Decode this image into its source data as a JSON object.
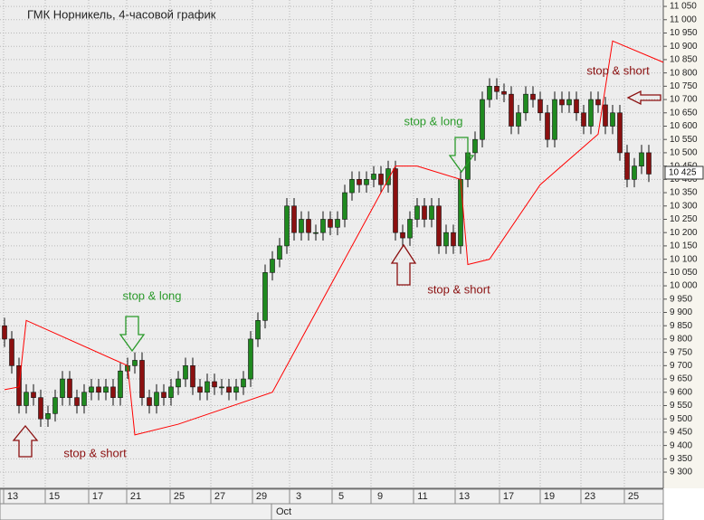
{
  "chart_data": {
    "type": "candlestick",
    "title": "ГМК Норникель, 4-часовой график",
    "open": [
      9850,
      9800,
      9700,
      9550,
      9600,
      9580,
      9500,
      9520,
      9580,
      9650,
      9580,
      9550,
      9600,
      9620,
      9600,
      9620,
      9580,
      9680,
      9700,
      9720,
      9580,
      9550,
      9600,
      9580,
      9620,
      9650,
      9700,
      9620,
      9600,
      9640,
      9620,
      9620,
      9600,
      9620,
      9650,
      9800,
      9870,
      10050,
      10100,
      10150,
      10300,
      10200,
      10250,
      10200,
      10200,
      10250,
      10220,
      10250,
      10350,
      10400,
      10380,
      10400,
      10420,
      10380,
      10440,
      10200,
      10180,
      10250,
      10300,
      10250,
      10300,
      10150,
      10200,
      10150,
      10400,
      10500,
      10550,
      10700,
      10750,
      10730,
      10720,
      10600,
      10650,
      10720,
      10700,
      10650,
      10550,
      10700,
      10680,
      10700,
      10650,
      10600,
      10700,
      10680,
      10600,
      10650,
      10500,
      10400,
      10450,
      10500
    ],
    "high": [
      9880,
      9830,
      9730,
      9630,
      9630,
      9610,
      9550,
      9610,
      9680,
      9680,
      9610,
      9630,
      9650,
      9650,
      9650,
      9650,
      9710,
      9730,
      9750,
      9750,
      9610,
      9630,
      9630,
      9650,
      9680,
      9730,
      9730,
      9650,
      9670,
      9670,
      9650,
      9650,
      9650,
      9680,
      9830,
      9900,
      10080,
      10130,
      10180,
      10330,
      10330,
      10280,
      10280,
      10230,
      10280,
      10280,
      10280,
      10380,
      10430,
      10430,
      10430,
      10450,
      10450,
      10470,
      10470,
      10230,
      10280,
      10330,
      10330,
      10330,
      10330,
      10230,
      10230,
      10430,
      10530,
      10580,
      10730,
      10780,
      10780,
      10760,
      10750,
      10680,
      10750,
      10750,
      10730,
      10680,
      10730,
      10730,
      10730,
      10730,
      10680,
      10730,
      10730,
      10710,
      10680,
      10680,
      10530,
      10480,
      10530,
      10530
    ],
    "low": [
      9770,
      9670,
      9520,
      9520,
      9550,
      9470,
      9470,
      9490,
      9550,
      9550,
      9520,
      9520,
      9570,
      9570,
      9570,
      9550,
      9550,
      9650,
      9670,
      9550,
      9520,
      9520,
      9550,
      9550,
      9590,
      9620,
      9590,
      9570,
      9570,
      9590,
      9590,
      9570,
      9570,
      9590,
      9620,
      9770,
      9840,
      10020,
      10070,
      10120,
      10170,
      10170,
      10170,
      10170,
      10170,
      10190,
      10190,
      10220,
      10320,
      10350,
      10350,
      10370,
      10350,
      10350,
      10170,
      10150,
      10150,
      10220,
      10220,
      10220,
      10120,
      10120,
      10120,
      10120,
      10370,
      10470,
      10520,
      10670,
      10700,
      10690,
      10570,
      10570,
      10620,
      10670,
      10620,
      10520,
      10520,
      10650,
      10650,
      10620,
      10570,
      10570,
      10650,
      10570,
      10570,
      10470,
      10370,
      10370,
      10420,
      10390
    ],
    "close": [
      9800,
      9700,
      9550,
      9600,
      9580,
      9500,
      9520,
      9580,
      9650,
      9580,
      9550,
      9600,
      9620,
      9600,
      9620,
      9580,
      9680,
      9700,
      9720,
      9580,
      9550,
      9600,
      9580,
      9620,
      9650,
      9700,
      9620,
      9600,
      9640,
      9620,
      9620,
      9600,
      9620,
      9650,
      9800,
      9870,
      10050,
      10100,
      10150,
      10300,
      10200,
      10250,
      10200,
      10200,
      10250,
      10220,
      10250,
      10350,
      10400,
      10380,
      10400,
      10420,
      10380,
      10440,
      10200,
      10180,
      10250,
      10300,
      10250,
      10300,
      10150,
      10200,
      10150,
      10400,
      10500,
      10550,
      10700,
      10750,
      10730,
      10720,
      10600,
      10650,
      10720,
      10700,
      10650,
      10550,
      10700,
      10680,
      10700,
      10650,
      10600,
      10700,
      10680,
      10600,
      10650,
      10500,
      10400,
      10450,
      10500,
      10420
    ],
    "up_color": "#1f8a1f",
    "down_color": "#8b1010",
    "series": [
      {
        "color": "#ff0000",
        "x": [
          0,
          2,
          3,
          17,
          18,
          24,
          37,
          41,
          49,
          54,
          57,
          63,
          64,
          67,
          74,
          82,
          84,
          91
        ],
        "values": [
          9610,
          9620,
          9870,
          9700,
          9440,
          9480,
          9600,
          9800,
          10200,
          10450,
          10450,
          10400,
          10080,
          10100,
          10380,
          10570,
          10920,
          10840
        ]
      }
    ],
    "annotations": [
      "stop & long",
      "stop & short",
      "stop & long",
      "stop & short",
      "stop & short"
    ],
    "annotation_colors": [
      "#2a9a2a",
      "#8b1010",
      "#2a9a2a",
      "#8b1010",
      "#8b1010"
    ],
    "x_labels": [
      "13",
      "15",
      "17",
      "21",
      "25",
      "27",
      "29",
      "3",
      "5",
      "9",
      "11",
      "13",
      "17",
      "19",
      "23",
      "25"
    ],
    "x_group_label": "Oct",
    "last_price": {
      "value": 10425,
      "label": "10 425"
    },
    "ylim": [
      9239,
      11074
    ],
    "yticks": [
      {
        "value": 9300,
        "label": "9 300"
      },
      {
        "value": 9350,
        "label": "9 350"
      },
      {
        "value": 9400,
        "label": "9 400"
      },
      {
        "value": 9450,
        "label": "9 450"
      },
      {
        "value": 9500,
        "label": "9 500"
      },
      {
        "value": 9550,
        "label": "9 550"
      },
      {
        "value": 9600,
        "label": "9 600"
      },
      {
        "value": 9650,
        "label": "9 650"
      },
      {
        "value": 9700,
        "label": "9 700"
      },
      {
        "value": 9750,
        "label": "9 750"
      },
      {
        "value": 9800,
        "label": "9 800"
      },
      {
        "value": 9850,
        "label": "9 850"
      },
      {
        "value": 9900,
        "label": "9 900"
      },
      {
        "value": 9950,
        "label": "9 950"
      },
      {
        "value": 10000,
        "label": "10 000"
      },
      {
        "value": 10050,
        "label": "10 050"
      },
      {
        "value": 10100,
        "label": "10 100"
      },
      {
        "value": 10150,
        "label": "10 150"
      },
      {
        "value": 10200,
        "label": "10 200"
      },
      {
        "value": 10250,
        "label": "10 250"
      },
      {
        "value": 10300,
        "label": "10 300"
      },
      {
        "value": 10350,
        "label": "10 350"
      },
      {
        "value": 10400,
        "label": "10 400"
      },
      {
        "value": 10450,
        "label": "10 450"
      },
      {
        "value": 10500,
        "label": "10 500"
      },
      {
        "value": 10550,
        "label": "10 550"
      },
      {
        "value": 10600,
        "label": "10 600"
      },
      {
        "value": 10650,
        "label": "10 650"
      },
      {
        "value": 10700,
        "label": "10 700"
      },
      {
        "value": 10750,
        "label": "10 750"
      },
      {
        "value": 10800,
        "label": "10 800"
      },
      {
        "value": 10850,
        "label": "10 850"
      },
      {
        "value": 10900,
        "label": "10 900"
      },
      {
        "value": 10950,
        "label": "10 950"
      },
      {
        "value": 11000,
        "label": "11 000"
      },
      {
        "value": 11050,
        "label": "11 050"
      }
    ],
    "grid": true
  }
}
